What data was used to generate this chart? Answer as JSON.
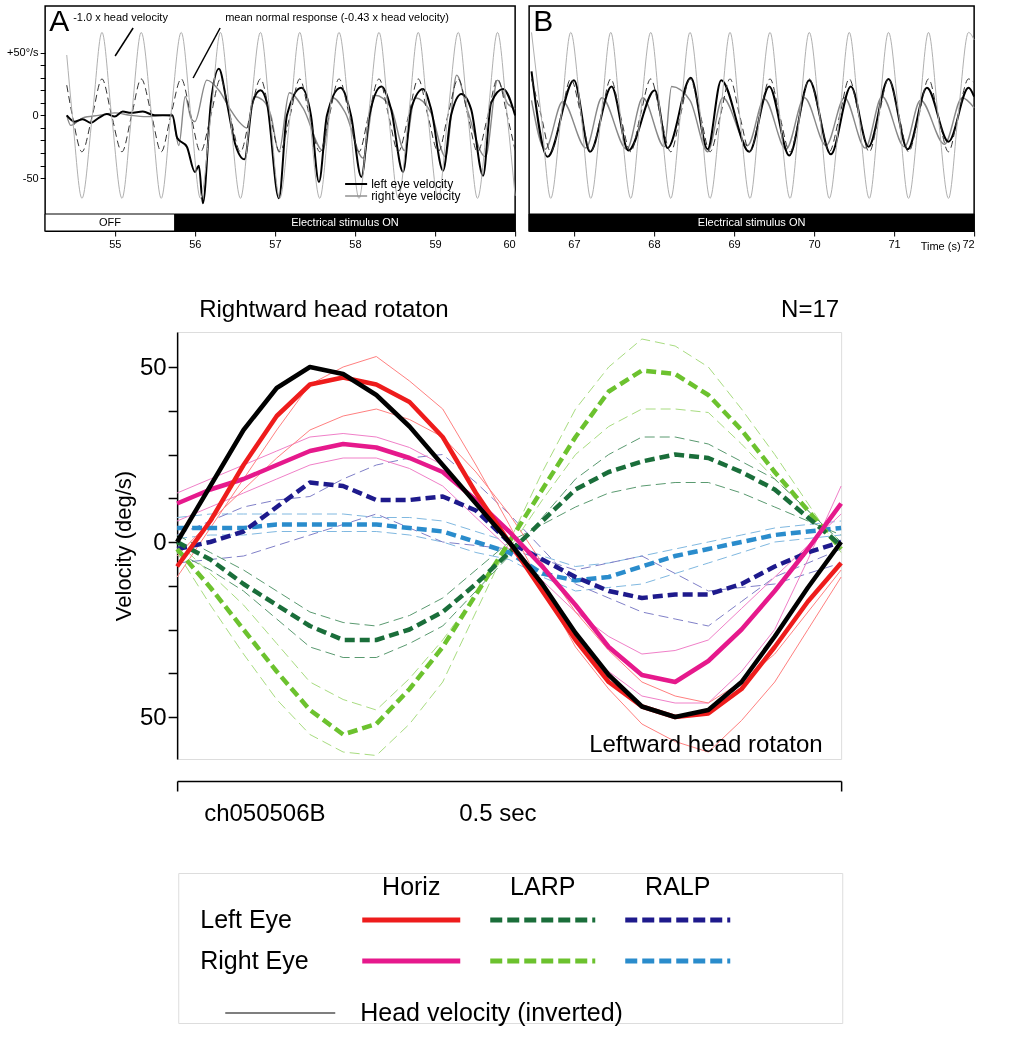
{
  "chart_data": [
    {
      "type": "line",
      "annotations": [
        "A"
      ],
      "xlim": [
        54.13,
        60
      ],
      "xticks": [
        55,
        56,
        57,
        58,
        59,
        60
      ],
      "ylim": [
        -92,
        87
      ],
      "yticks": [
        {
          "value": -50,
          "label": "-50"
        },
        {
          "value": -40,
          "label": null
        },
        {
          "value": -30,
          "label": null
        },
        {
          "value": -20,
          "label": null
        },
        {
          "value": -10,
          "label": null
        },
        {
          "value": 0,
          "label": "0"
        },
        {
          "value": 10,
          "label": null
        },
        {
          "value": 20,
          "label": null
        },
        {
          "value": 30,
          "label": null
        },
        {
          "value": 40,
          "label": null
        },
        {
          "value": 50,
          "label": "+50°/s"
        }
      ],
      "grid": false,
      "legend": "bottom right",
      "bands": [
        {
          "axis": "x",
          "from": 54.13,
          "to": 55.75,
          "label": "OFF",
          "color": "#ffffff"
        },
        {
          "axis": "x",
          "from": 55.75,
          "to": 60,
          "label": "Electrical stimulus ON",
          "color": "#000000"
        }
      ],
      "series": [
        {
          "name": "-1.0 x head velocity",
          "color": "#b0b0b0",
          "line_style": "solid",
          "x": [
            54.4,
            54.47,
            54.59,
            54.72,
            54.84,
            54.96,
            55.09,
            55.21,
            55.33,
            55.46,
            55.58,
            55.7,
            55.83,
            55.95,
            56.07,
            56.2,
            56.32,
            56.44,
            56.57,
            56.69,
            56.82,
            56.94,
            57.06,
            57.19,
            57.31,
            57.43,
            57.56,
            57.68,
            57.8,
            57.93,
            58.05,
            58.17,
            58.3,
            58.42,
            58.54,
            58.67,
            58.79,
            58.91,
            59.04,
            59.16,
            59.29,
            59.41,
            59.53,
            59.66,
            59.78,
            59.9,
            60.0
          ],
          "values": [
            48,
            0,
            -66,
            0,
            66,
            0,
            -66,
            0,
            66,
            0,
            -66,
            0,
            66,
            0,
            -66,
            0,
            66,
            0,
            -66,
            0,
            66,
            0,
            -66,
            0,
            66,
            0,
            -66,
            0,
            66,
            0,
            -66,
            0,
            66,
            0,
            -66,
            0,
            66,
            0,
            -66,
            0,
            66,
            0,
            -66,
            0,
            66,
            0,
            -64
          ]
        },
        {
          "name": "mean normal response (-0.43 x head velocity)",
          "color": "#333333",
          "line_style": "dashed",
          "x": [
            54.4,
            54.47,
            54.59,
            54.72,
            54.84,
            54.96,
            55.09,
            55.21,
            55.33,
            55.46,
            55.58,
            55.7,
            55.83,
            55.95,
            56.07,
            56.2,
            56.32,
            56.44,
            56.57,
            56.69,
            56.82,
            56.94,
            57.06,
            57.19,
            57.31,
            57.43,
            57.56,
            57.68,
            57.8,
            57.93,
            58.05,
            58.17,
            58.3,
            58.42,
            58.54,
            58.67,
            58.79,
            58.91,
            59.04,
            59.16,
            59.29,
            59.41,
            59.53,
            59.66,
            59.78,
            59.9,
            60.0
          ],
          "values": [
            24,
            0,
            -29,
            0,
            29,
            0,
            -29,
            0,
            29,
            0,
            -29,
            0,
            29,
            0,
            -29,
            0,
            29,
            0,
            -29,
            0,
            29,
            0,
            -29,
            0,
            29,
            0,
            -29,
            0,
            29,
            0,
            -29,
            0,
            29,
            0,
            -29,
            0,
            29,
            0,
            -29,
            0,
            29,
            0,
            -29,
            0,
            29,
            0,
            -28
          ]
        },
        {
          "name": "left eye velocity",
          "color": "#000000",
          "line_style": "solid",
          "x": [
            54.4,
            54.5,
            54.6,
            54.7,
            54.8,
            54.9,
            55.0,
            55.1,
            55.2,
            55.35,
            55.5,
            55.72,
            55.78,
            55.9,
            56.0,
            56.05,
            56.1,
            56.2,
            56.3,
            56.4,
            56.5,
            56.62,
            56.72,
            56.82,
            56.9,
            57.05,
            57.15,
            57.33,
            57.45,
            57.55,
            57.65,
            57.82,
            57.95,
            58.08,
            58.18,
            58.33,
            58.45,
            58.6,
            58.7,
            58.85,
            58.95,
            59.1,
            59.2,
            59.33,
            59.45,
            59.6,
            59.7,
            59.85,
            60.0
          ],
          "values": [
            0,
            -5,
            -3,
            -6,
            -2,
            1,
            -1,
            3,
            2,
            3,
            0,
            0,
            -18,
            -25,
            -45,
            -40,
            -70,
            10,
            37,
            10,
            -22,
            -35,
            10,
            20,
            10,
            -66,
            0,
            22,
            0,
            -53,
            0,
            22,
            0,
            -49,
            0,
            23,
            5,
            -45,
            5,
            21,
            5,
            -44,
            0,
            17,
            5,
            -48,
            10,
            21,
            0
          ]
        },
        {
          "name": "right eye velocity",
          "color": "#888888",
          "line_style": "solid",
          "x": [
            54.4,
            54.45,
            54.6,
            54.8,
            55.0,
            55.2,
            55.4,
            55.6,
            55.72,
            55.8,
            55.88,
            55.95,
            56.0,
            56.15,
            56.3,
            56.45,
            56.55,
            56.65,
            56.74,
            56.85,
            56.95,
            57.05,
            57.18,
            57.35,
            57.6,
            57.72,
            57.88,
            58.1,
            58.25,
            58.45,
            58.62,
            58.75,
            58.95,
            59.13,
            59.27,
            59.4,
            59.63,
            59.78,
            59.9,
            60.0
          ],
          "values": [
            0,
            -8,
            -2,
            0,
            2,
            0,
            -1,
            0,
            -1,
            -24,
            15,
            -2,
            -5,
            28,
            20,
            4,
            -5,
            -10,
            15,
            12,
            0,
            -29,
            18,
            6,
            -28,
            14,
            2,
            -34,
            16,
            6,
            -28,
            14,
            2,
            -33,
            32,
            5,
            -33,
            28,
            10,
            5
          ]
        }
      ]
    },
    {
      "type": "line",
      "annotations": [
        "B"
      ],
      "xlabel": "Time (s)",
      "xlim": [
        66.44,
        72
      ],
      "xticks": [
        67,
        68,
        69,
        70,
        71,
        72
      ],
      "ylim": [
        -92,
        87
      ],
      "tick_labels": "x",
      "grid": false,
      "bands": [
        {
          "axis": "x",
          "from": 66.44,
          "to": 72,
          "label": "Electrical stimulus ON",
          "color": "#000000"
        }
      ],
      "series": [
        {
          "color": "#b0b0b0",
          "line_style": "solid",
          "x": [
            66.47,
            66.59,
            66.71,
            66.84,
            66.96,
            67.09,
            67.21,
            67.34,
            67.46,
            67.58,
            67.71,
            67.83,
            67.96,
            68.08,
            68.21,
            68.33,
            68.45,
            68.58,
            68.7,
            68.83,
            68.95,
            69.07,
            69.2,
            69.32,
            69.45,
            69.57,
            69.7,
            69.82,
            69.94,
            70.07,
            70.19,
            70.32,
            70.44,
            70.56,
            70.69,
            70.81,
            70.93,
            71.06,
            71.18,
            71.31,
            71.43,
            71.55,
            71.68,
            71.8,
            71.93,
            72.0
          ],
          "values": [
            66,
            0,
            -66,
            0,
            66,
            0,
            -66,
            0,
            66,
            0,
            -66,
            0,
            66,
            0,
            -66,
            0,
            66,
            0,
            -66,
            0,
            66,
            0,
            -66,
            0,
            66,
            0,
            -66,
            0,
            66,
            0,
            -66,
            0,
            66,
            0,
            -66,
            0,
            66,
            0,
            -66,
            0,
            66,
            0,
            -66,
            0,
            66,
            60
          ]
        },
        {
          "color": "#333333",
          "line_style": "dashed",
          "x": [
            66.47,
            66.59,
            66.71,
            66.84,
            66.96,
            67.09,
            67.21,
            67.34,
            67.46,
            67.58,
            67.71,
            67.83,
            67.96,
            68.08,
            68.21,
            68.33,
            68.45,
            68.58,
            68.7,
            68.83,
            68.95,
            69.07,
            69.2,
            69.32,
            69.45,
            69.57,
            69.7,
            69.82,
            69.94,
            70.07,
            70.19,
            70.32,
            70.44,
            70.56,
            70.69,
            70.81,
            70.93,
            71.06,
            71.18,
            71.31,
            71.43,
            71.55,
            71.68,
            71.8,
            71.93,
            72.0
          ],
          "values": [
            29,
            0,
            -29,
            0,
            29,
            0,
            -29,
            0,
            29,
            0,
            -29,
            0,
            29,
            0,
            -29,
            0,
            29,
            0,
            -29,
            0,
            29,
            0,
            -29,
            0,
            29,
            0,
            -29,
            0,
            29,
            0,
            -29,
            0,
            29,
            0,
            -29,
            0,
            29,
            0,
            -29,
            0,
            29,
            0,
            -29,
            0,
            29,
            26
          ]
        },
        {
          "color": "#000000",
          "line_style": "solid",
          "x": [
            66.47,
            66.67,
            67.0,
            67.2,
            67.47,
            67.68,
            68.01,
            68.17,
            68.46,
            68.67,
            68.84,
            69.19,
            69.44,
            69.69,
            69.94,
            70.21,
            70.46,
            70.68,
            70.93,
            71.17,
            71.41,
            71.68,
            71.93,
            72.0
          ],
          "values": [
            35,
            -33,
            28,
            -29,
            23,
            -28,
            20,
            -26,
            30,
            -27,
            28,
            -29,
            23,
            -32,
            28,
            -31,
            23,
            -25,
            29,
            -27,
            22,
            -21,
            22,
            15
          ]
        },
        {
          "color": "#888888",
          "line_style": "solid",
          "x": [
            66.47,
            66.64,
            66.86,
            67.15,
            67.35,
            67.66,
            67.86,
            68.13,
            68.22,
            68.45,
            68.67,
            68.86,
            69.17,
            69.38,
            69.65,
            69.88,
            70.15,
            70.38,
            70.64,
            70.85,
            71.13,
            71.33,
            71.63,
            71.85,
            72.0
          ],
          "values": [
            12,
            -27,
            11,
            -26,
            14,
            -27,
            14,
            -25,
            23,
            12,
            -29,
            14,
            -24,
            13,
            -27,
            14,
            -24,
            14,
            -26,
            15,
            -25,
            12,
            -23,
            14,
            6
          ]
        }
      ]
    },
    {
      "type": "line",
      "ylabel": "Velocity (deg/s)",
      "categories": [
        null,
        null,
        null,
        null,
        null,
        null,
        null,
        null,
        null,
        null,
        null,
        null,
        null,
        null,
        null,
        null,
        null,
        null,
        null,
        null,
        null
      ],
      "ylim": [
        -62,
        60
      ],
      "yticks": [
        {
          "value": -50,
          "label": "50"
        },
        {
          "value": -37.5,
          "label": null
        },
        {
          "value": -25,
          "label": null
        },
        {
          "value": -12.5,
          "label": null
        },
        {
          "value": 0,
          "label": "0"
        },
        {
          "value": 12.5,
          "label": null
        },
        {
          "value": 25,
          "label": null
        },
        {
          "value": 37.5,
          "label": null
        },
        {
          "value": 50,
          "label": "50"
        }
      ],
      "grid": false,
      "legend": "bottom",
      "annotations": [
        "Rightward head rotaton",
        "Leftward head rotaton",
        "N=17",
        "ch050506B",
        "0.5 sec",
        "Horiz",
        "LARP",
        "RALP",
        "Left Eye",
        "Right Eye"
      ],
      "series": [
        {
          "name": "Head velocity (inverted)",
          "color": "#000000",
          "line_style": "solid",
          "values": [
            0,
            16,
            32,
            44,
            50,
            48,
            42,
            33,
            22,
            11,
            0,
            -12,
            -26,
            -38,
            -47,
            -50,
            -48,
            -40,
            -27,
            -13,
            0
          ]
        },
        {
          "color": "#ee1c1c",
          "line_style": "solid",
          "values": [
            -7,
            6,
            22,
            36,
            45,
            47,
            45,
            40,
            30,
            14,
            0,
            -14,
            -28,
            -40,
            -47,
            -50,
            -49,
            -42,
            -30,
            -17,
            -6
          ]
        },
        {
          "color": "#e6198c",
          "line_style": "solid",
          "values": [
            11,
            15,
            18,
            22,
            26,
            28,
            27,
            24,
            20,
            12,
            3,
            -7,
            -18,
            -30,
            -38,
            -40,
            -34,
            -25,
            -14,
            -2,
            11
          ]
        },
        {
          "color": "#1a6e3a",
          "line_style": "dashed",
          "values": [
            0,
            -5,
            -12,
            -18,
            -24,
            -28,
            -28,
            -25,
            -20,
            -12,
            -3,
            6,
            15,
            20,
            23,
            25,
            24,
            20,
            15,
            7,
            -1
          ]
        },
        {
          "color": "#6cc22e",
          "line_style": "dashed",
          "values": [
            -2,
            -13,
            -25,
            -37,
            -48,
            -55,
            -52,
            -42,
            -30,
            -15,
            0,
            15,
            30,
            43,
            49,
            48,
            42,
            32,
            20,
            9,
            -2
          ]
        },
        {
          "color": "#1e1a8c",
          "line_style": "dashed",
          "values": [
            -2,
            0,
            3,
            10,
            17,
            16,
            12,
            12,
            13,
            9,
            0,
            -5,
            -10,
            -14,
            -16,
            -15,
            -15,
            -12,
            -7,
            -3,
            0
          ]
        },
        {
          "color": "#2a8ccc",
          "line_style": "dashed",
          "values": [
            4,
            4,
            4,
            5,
            5,
            5,
            5,
            4,
            3,
            0,
            -3,
            -9,
            -11,
            -10,
            -7,
            -4,
            -2,
            0,
            2,
            3,
            4
          ]
        },
        {
          "color": "#ff8080",
          "line_style": "solid",
          "values": [
            -10,
            4,
            18,
            32,
            45,
            50,
            53,
            46,
            38,
            22,
            5,
            -13,
            -30,
            -42,
            -52,
            -57,
            -60,
            -51,
            -40,
            -25,
            -10
          ]
        },
        {
          "color": "#ff8080",
          "line_style": "solid",
          "values": [
            -4,
            6,
            15,
            24,
            32,
            36,
            38,
            35,
            30,
            20,
            8,
            -6,
            -20,
            -31,
            -40,
            -44,
            -46,
            -40,
            -32,
            -20,
            -8
          ]
        },
        {
          "color": "#f080c8",
          "line_style": "solid",
          "values": [
            14,
            18,
            22,
            26,
            30,
            31,
            30,
            27,
            22,
            12,
            0,
            -14,
            -28,
            -37,
            -44,
            -46,
            -46,
            -37,
            -25,
            -5,
            16
          ]
        },
        {
          "color": "#f080c8",
          "line_style": "solid",
          "values": [
            6,
            10,
            14,
            18,
            22,
            24,
            24,
            21,
            16,
            7,
            -2,
            -11,
            -20,
            -27,
            -32,
            -31,
            -28,
            -19,
            -10,
            -1,
            8
          ]
        },
        {
          "color": "#5a9a70",
          "line_style": "dashed",
          "values": [
            -3,
            -8,
            -14,
            -22,
            -30,
            -33,
            -33,
            -29,
            -24,
            -14,
            -4,
            7,
            18,
            25,
            30,
            30,
            28,
            23,
            18,
            9,
            0
          ]
        },
        {
          "color": "#5a9a70",
          "line_style": "dashed",
          "values": [
            2,
            -3,
            -8,
            -14,
            -20,
            -23,
            -24,
            -21,
            -16,
            -8,
            0,
            5,
            10,
            14,
            16,
            17,
            17,
            14,
            10,
            6,
            2
          ]
        },
        {
          "color": "#a8dc80",
          "line_style": "dashed",
          "values": [
            -3,
            -18,
            -32,
            -45,
            -55,
            -60,
            -61,
            -52,
            -40,
            -20,
            0,
            20,
            38,
            50,
            58,
            56,
            50,
            38,
            25,
            11,
            -3
          ]
        },
        {
          "color": "#a8dc80",
          "line_style": "dashed",
          "values": [
            0,
            -9,
            -18,
            -29,
            -40,
            -45,
            -48,
            -39,
            -28,
            -15,
            -2,
            12,
            25,
            33,
            38,
            38,
            37,
            28,
            18,
            9,
            0
          ]
        },
        {
          "color": "#8080c8",
          "line_style": "dashed",
          "values": [
            2,
            6,
            10,
            12,
            13,
            18,
            22,
            24,
            25,
            17,
            8,
            -2,
            -12,
            -16,
            -20,
            -22,
            -24,
            -17,
            -10,
            -6,
            -2
          ]
        },
        {
          "color": "#8080c8",
          "line_style": "dashed",
          "values": [
            -6,
            -5,
            -4,
            -1,
            2,
            5,
            8,
            4,
            0,
            -1,
            -2,
            -5,
            -8,
            -6,
            -4,
            -9,
            -14,
            -13,
            -12,
            -9,
            -6
          ]
        },
        {
          "color": "#80b8e0",
          "line_style": "dashed",
          "values": [
            7,
            8,
            8,
            8,
            8,
            8,
            7,
            7,
            6,
            3,
            0,
            -4,
            -7,
            -6,
            -4,
            -2,
            0,
            2,
            4,
            5,
            6
          ]
        },
        {
          "color": "#80b8e0",
          "line_style": "dashed",
          "values": [
            1,
            2,
            2,
            3,
            3,
            3,
            3,
            2,
            0,
            -3,
            -5,
            -10,
            -14,
            -13,
            -12,
            -9,
            -6,
            -3,
            0,
            1,
            2
          ]
        }
      ]
    }
  ]
}
